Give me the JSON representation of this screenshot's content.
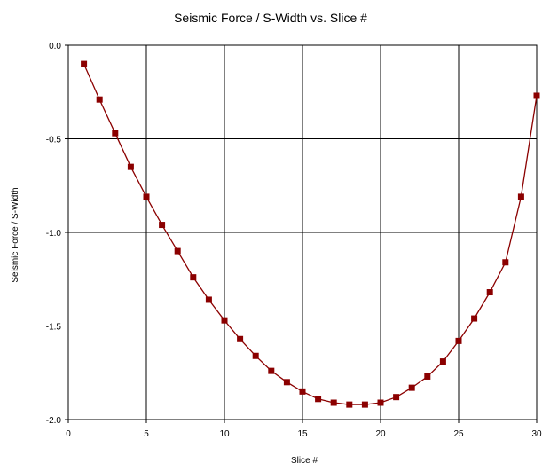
{
  "chart_data": {
    "type": "line",
    "title": "Seismic Force / S-Width vs. Slice #",
    "xlabel": "Slice #",
    "ylabel": "Seismic Force / S-Width",
    "xlim": [
      0,
      30
    ],
    "ylim": [
      -2.0,
      0.0
    ],
    "x_ticks": [
      0,
      5,
      10,
      15,
      20,
      25,
      30
    ],
    "y_ticks": [
      0.0,
      -0.5,
      -1.0,
      -1.5,
      -2.0
    ],
    "x_tick_labels": [
      "0",
      "5",
      "10",
      "15",
      "20",
      "25",
      "30"
    ],
    "y_tick_labels": [
      "0.0",
      "-0.5",
      "-1.0",
      "-1.5",
      "-2.0"
    ],
    "grid": true,
    "legend": false,
    "colors": {
      "series": "#8b0000"
    },
    "series": [
      {
        "marker": "square",
        "x": [
          1,
          2,
          3,
          4,
          5,
          6,
          7,
          8,
          9,
          10,
          11,
          12,
          13,
          14,
          15,
          16,
          17,
          18,
          19,
          20,
          21,
          22,
          23,
          24,
          25,
          26,
          27,
          28,
          29,
          30
        ],
        "y": [
          -0.1,
          -0.29,
          -0.47,
          -0.65,
          -0.81,
          -0.96,
          -1.1,
          -1.24,
          -1.36,
          -1.47,
          -1.57,
          -1.66,
          -1.74,
          -1.8,
          -1.85,
          -1.89,
          -1.91,
          -1.92,
          -1.92,
          -1.91,
          -1.88,
          -1.83,
          -1.77,
          -1.69,
          -1.58,
          -1.46,
          -1.32,
          -1.16,
          -0.81,
          -0.27
        ]
      }
    ]
  }
}
